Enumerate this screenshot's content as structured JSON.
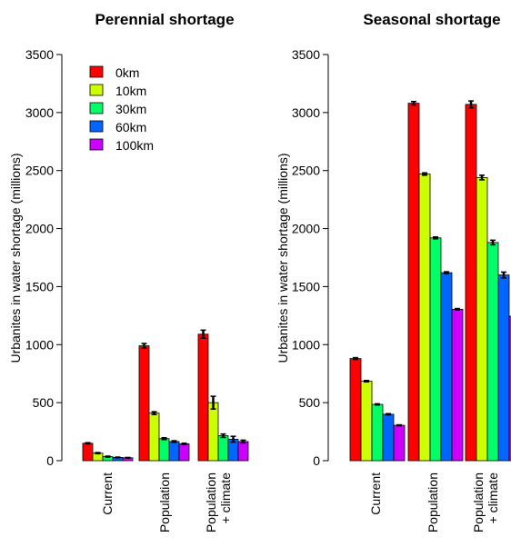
{
  "legend": [
    {
      "label": "0km",
      "color": "#ff0000"
    },
    {
      "label": "10km",
      "color": "#ccff00"
    },
    {
      "label": "30km",
      "color": "#00ff66"
    },
    {
      "label": "60km",
      "color": "#0066ff"
    },
    {
      "label": "100km",
      "color": "#cc00ff"
    }
  ],
  "chart_data": [
    {
      "type": "bar",
      "title": "Perennial shortage",
      "ylabel": "Urbanites in water shortage (millions)",
      "ylim": [
        0,
        3500
      ],
      "yticks": [
        0,
        500,
        1000,
        1500,
        2000,
        2500,
        3000,
        3500
      ],
      "categories": [
        [
          "Current"
        ],
        [
          "Population"
        ],
        [
          "Population",
          "+ climate"
        ]
      ],
      "series": [
        {
          "name": "0km",
          "color": "#ff0000",
          "values": [
            150,
            990,
            1090
          ],
          "errors": [
            5,
            20,
            35
          ]
        },
        {
          "name": "10km",
          "color": "#ccff00",
          "values": [
            65,
            410,
            500
          ],
          "errors": [
            5,
            12,
            55
          ]
        },
        {
          "name": "30km",
          "color": "#00ff66",
          "values": [
            35,
            190,
            215
          ],
          "errors": [
            4,
            8,
            15
          ]
        },
        {
          "name": "60km",
          "color": "#0066ff",
          "values": [
            28,
            165,
            185
          ],
          "errors": [
            3,
            7,
            25
          ]
        },
        {
          "name": "100km",
          "color": "#cc00ff",
          "values": [
            25,
            145,
            165
          ],
          "errors": [
            3,
            6,
            12
          ]
        }
      ]
    },
    {
      "type": "bar",
      "title": "Seasonal shortage",
      "ylabel": "Urbanites in water shortage (millions)",
      "ylim": [
        0,
        3500
      ],
      "yticks": [
        0,
        500,
        1000,
        1500,
        2000,
        2500,
        3000,
        3500
      ],
      "categories": [
        [
          "Current"
        ],
        [
          "Population"
        ],
        [
          "Population",
          "+ climate"
        ]
      ],
      "series": [
        {
          "name": "0km",
          "color": "#ff0000",
          "values": [
            880,
            3080,
            3070
          ],
          "errors": [
            8,
            15,
            30
          ]
        },
        {
          "name": "10km",
          "color": "#ccff00",
          "values": [
            685,
            2470,
            2440
          ],
          "errors": [
            6,
            10,
            20
          ]
        },
        {
          "name": "30km",
          "color": "#00ff66",
          "values": [
            485,
            1920,
            1880
          ],
          "errors": [
            5,
            8,
            20
          ]
        },
        {
          "name": "60km",
          "color": "#0066ff",
          "values": [
            400,
            1620,
            1600
          ],
          "errors": [
            5,
            8,
            25
          ]
        },
        {
          "name": "100km",
          "color": "#cc00ff",
          "values": [
            305,
            1305,
            1245
          ],
          "errors": [
            4,
            6,
            10
          ]
        }
      ]
    }
  ]
}
